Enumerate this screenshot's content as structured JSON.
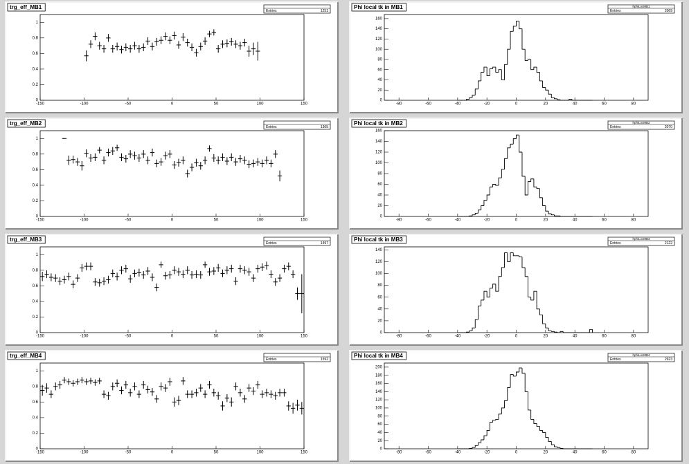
{
  "chart_data": [
    {
      "type": "errorbar",
      "title": "trg_eff_MB1",
      "stats_label": "Entries",
      "entries": 1251,
      "x": [
        -97.5,
        -92.5,
        -87.5,
        -82.5,
        -77.5,
        -72.5,
        -67.5,
        -62.5,
        -57.5,
        -52.5,
        -47.5,
        -42.5,
        -37.5,
        -32.5,
        -27.5,
        -22.5,
        -17.5,
        -12.5,
        -7.5,
        -2.5,
        2.5,
        7.5,
        12.5,
        17.5,
        22.5,
        27.5,
        32.5,
        37.5,
        42.5,
        47.5,
        52.5,
        57.5,
        62.5,
        67.5,
        72.5,
        77.5,
        82.5,
        87.5,
        92.5,
        97.5
      ],
      "values": [
        0.57,
        0.72,
        0.82,
        0.7,
        0.66,
        0.8,
        0.66,
        0.69,
        0.65,
        0.68,
        0.66,
        0.7,
        0.66,
        0.68,
        0.76,
        0.69,
        0.75,
        0.77,
        0.82,
        0.77,
        0.83,
        0.71,
        0.81,
        0.74,
        0.68,
        0.61,
        0.69,
        0.76,
        0.85,
        0.87,
        0.66,
        0.72,
        0.73,
        0.75,
        0.72,
        0.7,
        0.74,
        0.63,
        0.66,
        0.63
      ],
      "errors": [
        0.07,
        0.05,
        0.05,
        0.05,
        0.05,
        0.05,
        0.05,
        0.05,
        0.05,
        0.05,
        0.05,
        0.05,
        0.05,
        0.05,
        0.05,
        0.05,
        0.05,
        0.05,
        0.05,
        0.05,
        0.05,
        0.05,
        0.05,
        0.05,
        0.05,
        0.05,
        0.05,
        0.05,
        0.04,
        0.04,
        0.05,
        0.05,
        0.05,
        0.05,
        0.05,
        0.05,
        0.05,
        0.07,
        0.08,
        0.12
      ],
      "x_error": 2.5,
      "color": "#000000",
      "xlim": [
        -150,
        150
      ],
      "ylim": [
        0,
        1.1
      ],
      "xticks": [
        -150,
        -100,
        -50,
        0,
        50,
        100,
        150
      ],
      "yticks": [
        0,
        0.2,
        0.4,
        0.6,
        0.8,
        1
      ]
    },
    {
      "type": "histogram",
      "title": "Phi local tk in MB1",
      "stats_name": "hphiLocMB1",
      "stats_label": "Entries",
      "entries": 2069,
      "bins": [
        -40,
        -38,
        -36,
        -34,
        -32,
        -30,
        -28,
        -26,
        -24,
        -22,
        -20,
        -18,
        -16,
        -14,
        -12,
        -10,
        -8,
        -6,
        -4,
        -2,
        0,
        2,
        4,
        6,
        8,
        10,
        12,
        14,
        16,
        18,
        20,
        22,
        24,
        26,
        28,
        30,
        32,
        34,
        36,
        38,
        40,
        42,
        44,
        46,
        48,
        50,
        52
      ],
      "counts": [
        0,
        0,
        0,
        2,
        5,
        10,
        22,
        38,
        55,
        65,
        48,
        62,
        65,
        55,
        60,
        40,
        70,
        100,
        135,
        145,
        155,
        140,
        100,
        78,
        80,
        60,
        65,
        55,
        38,
        25,
        20,
        12,
        5,
        3,
        1,
        0,
        0,
        0,
        2,
        0,
        0,
        0,
        0,
        0,
        0,
        0
      ],
      "color": "#000000",
      "xlim": [
        -90,
        90
      ],
      "ylim": [
        0,
        168
      ],
      "xticks": [
        -80,
        -60,
        -40,
        -20,
        0,
        20,
        40,
        60,
        80
      ],
      "yticks": [
        0,
        20,
        40,
        60,
        80,
        100,
        120,
        140,
        160
      ]
    },
    {
      "type": "errorbar",
      "title": "trg_eff_MB2",
      "stats_label": "Entries",
      "entries": 1365,
      "x": [
        -122.5,
        -117.5,
        -112.5,
        -107.5,
        -102.5,
        -97.5,
        -92.5,
        -87.5,
        -82.5,
        -77.5,
        -72.5,
        -67.5,
        -62.5,
        -57.5,
        -52.5,
        -47.5,
        -42.5,
        -37.5,
        -32.5,
        -27.5,
        -22.5,
        -17.5,
        -12.5,
        -7.5,
        -2.5,
        2.5,
        7.5,
        12.5,
        17.5,
        22.5,
        27.5,
        32.5,
        37.5,
        42.5,
        47.5,
        52.5,
        57.5,
        62.5,
        67.5,
        72.5,
        77.5,
        82.5,
        87.5,
        92.5,
        97.5,
        102.5,
        107.5,
        112.5,
        117.5,
        122.5
      ],
      "values": [
        1,
        0.72,
        0.73,
        0.7,
        0.65,
        0.81,
        0.75,
        0.76,
        0.85,
        0.72,
        0.82,
        0.84,
        0.88,
        0.76,
        0.74,
        0.8,
        0.78,
        0.75,
        0.8,
        0.72,
        0.82,
        0.68,
        0.7,
        0.78,
        0.8,
        0.66,
        0.69,
        0.72,
        0.55,
        0.63,
        0.69,
        0.65,
        0.72,
        0.87,
        0.75,
        0.72,
        0.76,
        0.71,
        0.76,
        0.7,
        0.74,
        0.72,
        0.67,
        0.68,
        0.7,
        0.68,
        0.72,
        0.68,
        0.8,
        0.52
      ],
      "errors": [
        0,
        0.06,
        0.05,
        0.05,
        0.06,
        0.05,
        0.05,
        0.05,
        0.04,
        0.05,
        0.05,
        0.05,
        0.04,
        0.05,
        0.05,
        0.05,
        0.05,
        0.05,
        0.05,
        0.05,
        0.05,
        0.05,
        0.05,
        0.05,
        0.05,
        0.05,
        0.05,
        0.05,
        0.05,
        0.05,
        0.05,
        0.05,
        0.05,
        0.04,
        0.05,
        0.05,
        0.05,
        0.05,
        0.05,
        0.05,
        0.05,
        0.05,
        0.05,
        0.05,
        0.05,
        0.05,
        0.05,
        0.05,
        0.05,
        0.07
      ],
      "x_error": 2.5,
      "color": "#000000",
      "xlim": [
        -150,
        150
      ],
      "ylim": [
        0,
        1.1
      ],
      "xticks": [
        -150,
        -100,
        -50,
        0,
        50,
        100,
        150
      ],
      "yticks": [
        0,
        0.2,
        0.4,
        0.6,
        0.8,
        1
      ]
    },
    {
      "type": "histogram",
      "title": "Phi local tk in MB2",
      "stats_name": "hphiLocMB2",
      "stats_label": "Entries",
      "entries": 2070,
      "bins": [
        -40,
        -38,
        -36,
        -34,
        -32,
        -30,
        -28,
        -26,
        -24,
        -22,
        -20,
        -18,
        -16,
        -14,
        -12,
        -10,
        -8,
        -6,
        -4,
        -2,
        0,
        2,
        4,
        6,
        8,
        10,
        12,
        14,
        16,
        18,
        20,
        22,
        24,
        26,
        28,
        30,
        32,
        34,
        36,
        38,
        40,
        42,
        44,
        46,
        48,
        50,
        52
      ],
      "counts": [
        0,
        0,
        0,
        0,
        1,
        3,
        6,
        12,
        20,
        30,
        40,
        55,
        60,
        58,
        72,
        88,
        108,
        128,
        135,
        145,
        152,
        120,
        75,
        40,
        65,
        70,
        55,
        52,
        35,
        20,
        10,
        5,
        3,
        1,
        1,
        0,
        0,
        0,
        0,
        0,
        0,
        0,
        0,
        0,
        0,
        0
      ],
      "color": "#000000",
      "xlim": [
        -90,
        90
      ],
      "ylim": [
        0,
        160
      ],
      "xticks": [
        -80,
        -60,
        -40,
        -20,
        0,
        20,
        40,
        60,
        80
      ],
      "yticks": [
        0,
        20,
        40,
        60,
        80,
        100,
        120,
        140,
        160
      ]
    },
    {
      "type": "errorbar",
      "title": "trg_eff_MB3",
      "stats_label": "Entries",
      "entries": 1497,
      "x": [
        -147.5,
        -142.5,
        -137.5,
        -132.5,
        -127.5,
        -122.5,
        -117.5,
        -112.5,
        -107.5,
        -102.5,
        -97.5,
        -92.5,
        -87.5,
        -82.5,
        -77.5,
        -72.5,
        -67.5,
        -62.5,
        -57.5,
        -52.5,
        -47.5,
        -42.5,
        -37.5,
        -32.5,
        -27.5,
        -22.5,
        -17.5,
        -12.5,
        -7.5,
        -2.5,
        2.5,
        7.5,
        12.5,
        17.5,
        22.5,
        27.5,
        32.5,
        37.5,
        42.5,
        47.5,
        52.5,
        57.5,
        62.5,
        67.5,
        72.5,
        77.5,
        82.5,
        87.5,
        92.5,
        97.5,
        102.5,
        107.5,
        112.5,
        117.5,
        122.5,
        127.5,
        132.5,
        137.5,
        142.5,
        147.5
      ],
      "values": [
        0.72,
        0.75,
        0.71,
        0.7,
        0.66,
        0.68,
        0.72,
        0.62,
        0.7,
        0.83,
        0.85,
        0.85,
        0.65,
        0.64,
        0.66,
        0.68,
        0.76,
        0.72,
        0.8,
        0.82,
        0.69,
        0.76,
        0.77,
        0.74,
        0.79,
        0.71,
        0.58,
        0.87,
        0.73,
        0.74,
        0.8,
        0.78,
        0.75,
        0.8,
        0.74,
        0.75,
        0.74,
        0.87,
        0.78,
        0.79,
        0.83,
        0.76,
        0.8,
        0.82,
        0.66,
        0.82,
        0.8,
        0.78,
        0.7,
        0.82,
        0.84,
        0.86,
        0.75,
        0.65,
        0.7,
        0.82,
        0.85,
        0.75,
        0.5,
        0.5
      ],
      "errors": [
        0.06,
        0.05,
        0.05,
        0.05,
        0.05,
        0.05,
        0.05,
        0.05,
        0.05,
        0.05,
        0.05,
        0.05,
        0.05,
        0.05,
        0.05,
        0.05,
        0.05,
        0.05,
        0.05,
        0.05,
        0.05,
        0.05,
        0.05,
        0.05,
        0.05,
        0.05,
        0.05,
        0.04,
        0.05,
        0.05,
        0.05,
        0.05,
        0.05,
        0.05,
        0.05,
        0.05,
        0.05,
        0.04,
        0.05,
        0.05,
        0.05,
        0.05,
        0.05,
        0.05,
        0.05,
        0.05,
        0.05,
        0.05,
        0.05,
        0.05,
        0.05,
        0.05,
        0.05,
        0.05,
        0.05,
        0.05,
        0.05,
        0.05,
        0.08,
        0.25
      ],
      "x_error": 2.5,
      "color": "#000000",
      "xlim": [
        -150,
        150
      ],
      "ylim": [
        0,
        1.1
      ],
      "xticks": [
        -150,
        -100,
        -50,
        0,
        50,
        100,
        150
      ],
      "yticks": [
        0,
        0.2,
        0.4,
        0.6,
        0.8,
        1
      ]
    },
    {
      "type": "histogram",
      "title": "Phi local tk in MB3",
      "stats_name": "hphiLocMB3",
      "stats_label": "Entries",
      "entries": 2122,
      "bins": [
        -40,
        -38,
        -36,
        -34,
        -32,
        -30,
        -28,
        -26,
        -24,
        -22,
        -20,
        -18,
        -16,
        -14,
        -12,
        -10,
        -8,
        -6,
        -4,
        -2,
        0,
        2,
        4,
        6,
        8,
        10,
        12,
        14,
        16,
        18,
        20,
        22,
        24,
        26,
        28,
        30,
        32,
        34,
        36,
        38,
        40,
        42,
        44,
        46,
        48,
        50,
        52
      ],
      "counts": [
        0,
        0,
        0,
        1,
        3,
        8,
        22,
        45,
        55,
        70,
        60,
        75,
        82,
        70,
        95,
        110,
        135,
        120,
        135,
        130,
        130,
        128,
        110,
        95,
        60,
        55,
        70,
        40,
        30,
        15,
        8,
        3,
        2,
        1,
        0,
        2,
        0,
        0,
        0,
        0,
        0,
        0,
        0,
        0,
        0,
        5
      ],
      "color": "#000000",
      "xlim": [
        -90,
        90
      ],
      "ylim": [
        0,
        145
      ],
      "xticks": [
        -80,
        -60,
        -40,
        -20,
        0,
        20,
        40,
        60,
        80
      ],
      "yticks": [
        0,
        20,
        40,
        60,
        80,
        100,
        120,
        140
      ]
    },
    {
      "type": "errorbar",
      "title": "trg_eff_MB4",
      "stats_label": "Entries",
      "entries": 1592,
      "x": [
        -147.5,
        -142.5,
        -137.5,
        -132.5,
        -127.5,
        -122.5,
        -117.5,
        -112.5,
        -107.5,
        -102.5,
        -97.5,
        -92.5,
        -87.5,
        -82.5,
        -77.5,
        -72.5,
        -67.5,
        -62.5,
        -57.5,
        -52.5,
        -47.5,
        -42.5,
        -37.5,
        -32.5,
        -27.5,
        -22.5,
        -17.5,
        -12.5,
        -7.5,
        -2.5,
        2.5,
        7.5,
        12.5,
        17.5,
        22.5,
        27.5,
        32.5,
        37.5,
        42.5,
        47.5,
        52.5,
        57.5,
        62.5,
        67.5,
        72.5,
        77.5,
        82.5,
        87.5,
        92.5,
        97.5,
        102.5,
        107.5,
        112.5,
        117.5,
        122.5,
        127.5,
        132.5,
        137.5,
        142.5,
        147.5
      ],
      "values": [
        0.75,
        0.78,
        0.7,
        0.8,
        0.82,
        0.88,
        0.86,
        0.84,
        0.86,
        0.88,
        0.86,
        0.87,
        0.85,
        0.87,
        0.7,
        0.68,
        0.8,
        0.84,
        0.75,
        0.82,
        0.72,
        0.8,
        0.7,
        0.82,
        0.76,
        0.73,
        0.64,
        0.8,
        0.78,
        0.86,
        0.6,
        0.62,
        0.87,
        0.7,
        0.7,
        0.72,
        0.78,
        0.7,
        0.82,
        0.72,
        0.68,
        0.55,
        0.65,
        0.6,
        0.8,
        0.72,
        0.64,
        0.78,
        0.74,
        0.82,
        0.7,
        0.72,
        0.7,
        0.68,
        0.72,
        0.72,
        0.55,
        0.52,
        0.56,
        0.52
      ],
      "errors": [
        0.07,
        0.06,
        0.05,
        0.05,
        0.05,
        0.04,
        0.04,
        0.04,
        0.04,
        0.04,
        0.04,
        0.04,
        0.04,
        0.04,
        0.05,
        0.05,
        0.05,
        0.05,
        0.05,
        0.05,
        0.05,
        0.05,
        0.05,
        0.05,
        0.05,
        0.05,
        0.05,
        0.05,
        0.05,
        0.05,
        0.06,
        0.06,
        0.05,
        0.05,
        0.05,
        0.05,
        0.05,
        0.05,
        0.05,
        0.05,
        0.05,
        0.06,
        0.05,
        0.06,
        0.05,
        0.05,
        0.05,
        0.05,
        0.05,
        0.05,
        0.05,
        0.05,
        0.05,
        0.05,
        0.05,
        0.05,
        0.06,
        0.07,
        0.07,
        0.08
      ],
      "x_error": 2.5,
      "color": "#000000",
      "xlim": [
        -150,
        150
      ],
      "ylim": [
        0,
        1.1
      ],
      "xticks": [
        -150,
        -100,
        -50,
        0,
        50,
        100,
        150
      ],
      "yticks": [
        0,
        0.2,
        0.4,
        0.6,
        0.8,
        1
      ]
    },
    {
      "type": "histogram",
      "title": "Phi local tk in MB4",
      "stats_name": "hphiLocMB4",
      "stats_label": "Entries",
      "entries": 2923,
      "bins": [
        -40,
        -38,
        -36,
        -34,
        -32,
        -30,
        -28,
        -26,
        -24,
        -22,
        -20,
        -18,
        -16,
        -14,
        -12,
        -10,
        -8,
        -6,
        -4,
        -2,
        0,
        2,
        4,
        6,
        8,
        10,
        12,
        14,
        16,
        18,
        20,
        22,
        24,
        26,
        28,
        30,
        32,
        34,
        36,
        38,
        40,
        42,
        44,
        46,
        48,
        50,
        52
      ],
      "counts": [
        0,
        0,
        0,
        0,
        1,
        3,
        8,
        15,
        22,
        32,
        45,
        65,
        70,
        72,
        85,
        100,
        118,
        150,
        182,
        178,
        188,
        198,
        185,
        140,
        95,
        72,
        62,
        55,
        45,
        40,
        28,
        18,
        10,
        5,
        3,
        1,
        0,
        0,
        0,
        0,
        0,
        0,
        0,
        0,
        0,
        0
      ],
      "color": "#000000",
      "xlim": [
        -90,
        90
      ],
      "ylim": [
        0,
        210
      ],
      "xticks": [
        -80,
        -60,
        -40,
        -20,
        0,
        20,
        40,
        60,
        80
      ],
      "yticks": [
        0,
        20,
        40,
        60,
        80,
        100,
        120,
        140,
        160,
        180,
        200
      ]
    }
  ]
}
